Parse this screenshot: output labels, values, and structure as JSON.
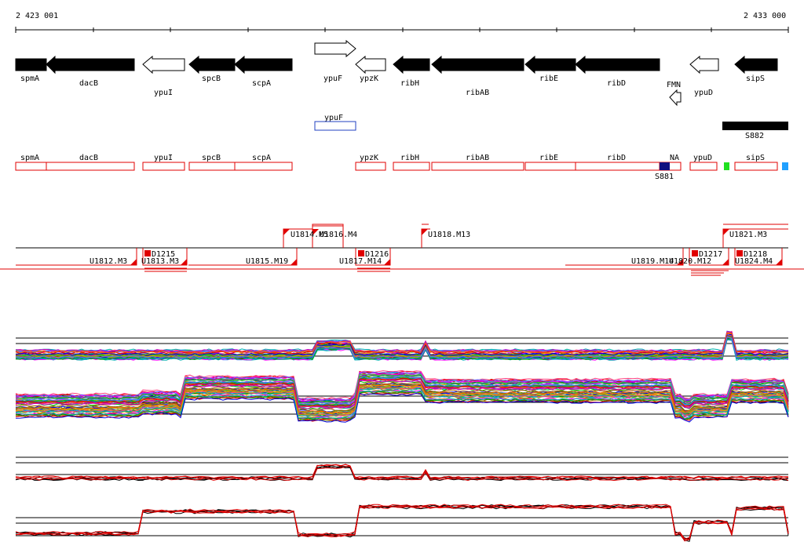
{
  "ruler": {
    "start_label": "2 423 001",
    "end_label": "2 433 000"
  },
  "genes": [
    {
      "label": "spmA",
      "strand": "-",
      "fill": "black"
    },
    {
      "label": "dacB",
      "strand": "-",
      "fill": "black"
    },
    {
      "label": "ypuI",
      "strand": "-",
      "fill": "white"
    },
    {
      "label": "spcB",
      "strand": "-",
      "fill": "black"
    },
    {
      "label": "scpA",
      "strand": "-",
      "fill": "black"
    },
    {
      "label": "ypuF",
      "strand": "+",
      "fill": "white"
    },
    {
      "label": "ypzK",
      "strand": "-",
      "fill": "white"
    },
    {
      "label": "ribH",
      "strand": "-",
      "fill": "black"
    },
    {
      "label": "ribAB",
      "strand": "-",
      "fill": "black"
    },
    {
      "label": "ribE",
      "strand": "-",
      "fill": "black"
    },
    {
      "label": "ribD",
      "strand": "-",
      "fill": "black"
    },
    {
      "label": "FMN",
      "strand": "-",
      "fill": "white"
    },
    {
      "label": "ypuD",
      "strand": "-",
      "fill": "white"
    },
    {
      "label": "sipS",
      "strand": "-",
      "fill": "black"
    }
  ],
  "features": {
    "ypuF_box": "ypuF",
    "s882": "S882",
    "s881": "S881"
  },
  "red_boxes": [
    "spmA",
    "dacB",
    "ypuI",
    "spcB",
    "scpA",
    "ypzK",
    "ribH",
    "ribAB",
    "ribE",
    "ribD",
    "NA",
    "ypuD",
    "sipS"
  ],
  "transcripts_upper": [
    "U1814.M5",
    "U1816.M4",
    "U1818.M13",
    "U1821.M3"
  ],
  "transcripts_lower": [
    "U1812.M3",
    "U1813.M3",
    "U1815.M19",
    "U1817.M14",
    "U1819.M14",
    "U1820.M12",
    "U1824.M4"
  ],
  "down_labels": [
    "D1215",
    "D1216",
    "D1217",
    "D1218"
  ],
  "colors": {
    "gene_fill": "#000000",
    "annot_red": "#e00000",
    "feature_blue": "#2040c0",
    "marker_navy": "#101080",
    "marker_green": "#20e020",
    "marker_cyan": "#20a0ff"
  }
}
